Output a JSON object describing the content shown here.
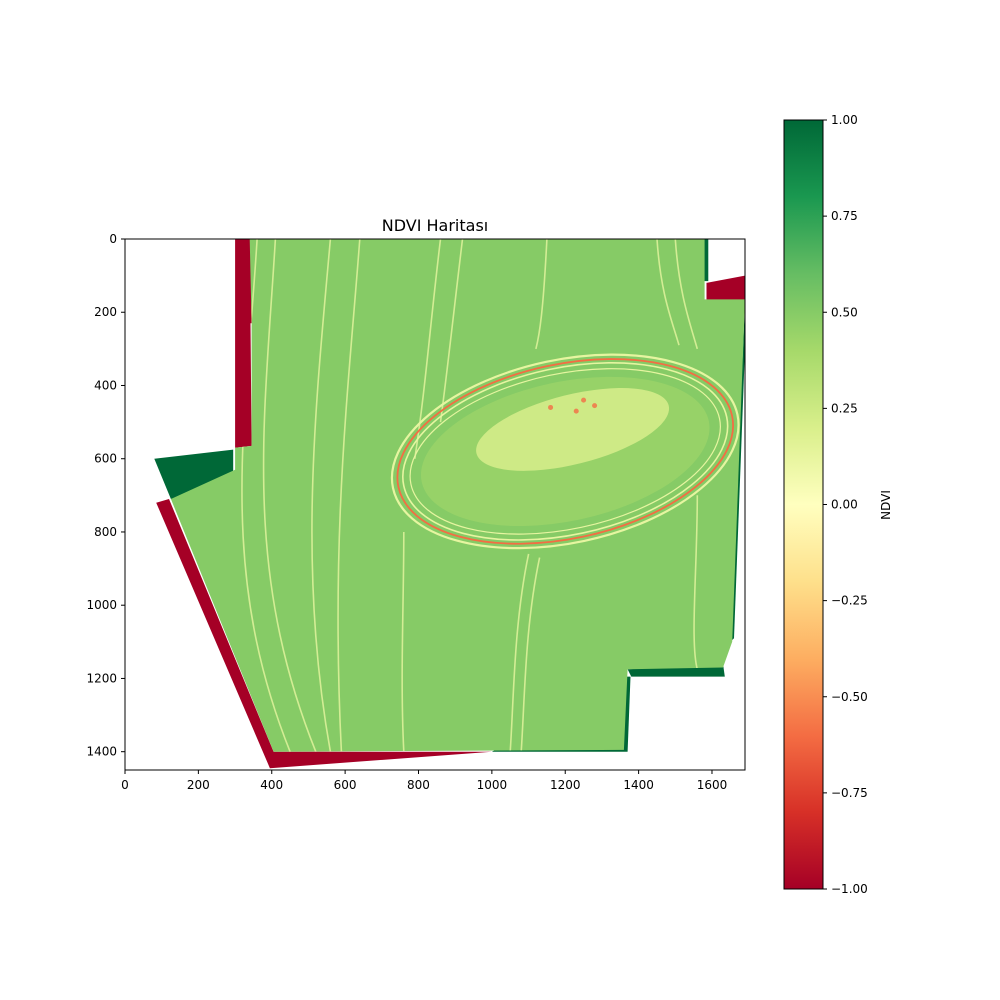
{
  "chart_data": {
    "type": "heatmap",
    "title": "NDVI Haritası",
    "xlabel": "",
    "ylabel": "",
    "xlim": [
      0,
      1690
    ],
    "ylim": [
      1450,
      0
    ],
    "x_ticks": [
      0,
      200,
      400,
      600,
      800,
      1000,
      1200,
      1400,
      1600
    ],
    "y_ticks": [
      0,
      200,
      400,
      600,
      800,
      1000,
      1200,
      1400
    ],
    "colormap": "RdYlGn",
    "colorbar": {
      "label": "NDVI",
      "range": [
        -1.0,
        1.0
      ],
      "ticks": [
        "1.00",
        "0.75",
        "0.50",
        "0.25",
        "0.00",
        "−0.25",
        "−0.50",
        "−0.75",
        "−1.00"
      ],
      "tick_values": [
        1.0,
        0.75,
        0.5,
        0.25,
        0.0,
        -0.25,
        -0.5,
        -0.75,
        -1.0
      ]
    },
    "field_ndvi_typical": 0.45,
    "track_ndvi_typical": 0.1,
    "track_edge_ndvi_min": -0.6,
    "inner_patch_ndvi_typical": 0.15
  },
  "colors": {
    "field": "#86cb66",
    "field_light": "#a6d96a",
    "track": "#e6f5a0",
    "track_edge": "#f46d43",
    "inner_patch": "#d4ec8a",
    "neg_extreme": "#a50026",
    "pos_extreme": "#006837"
  }
}
